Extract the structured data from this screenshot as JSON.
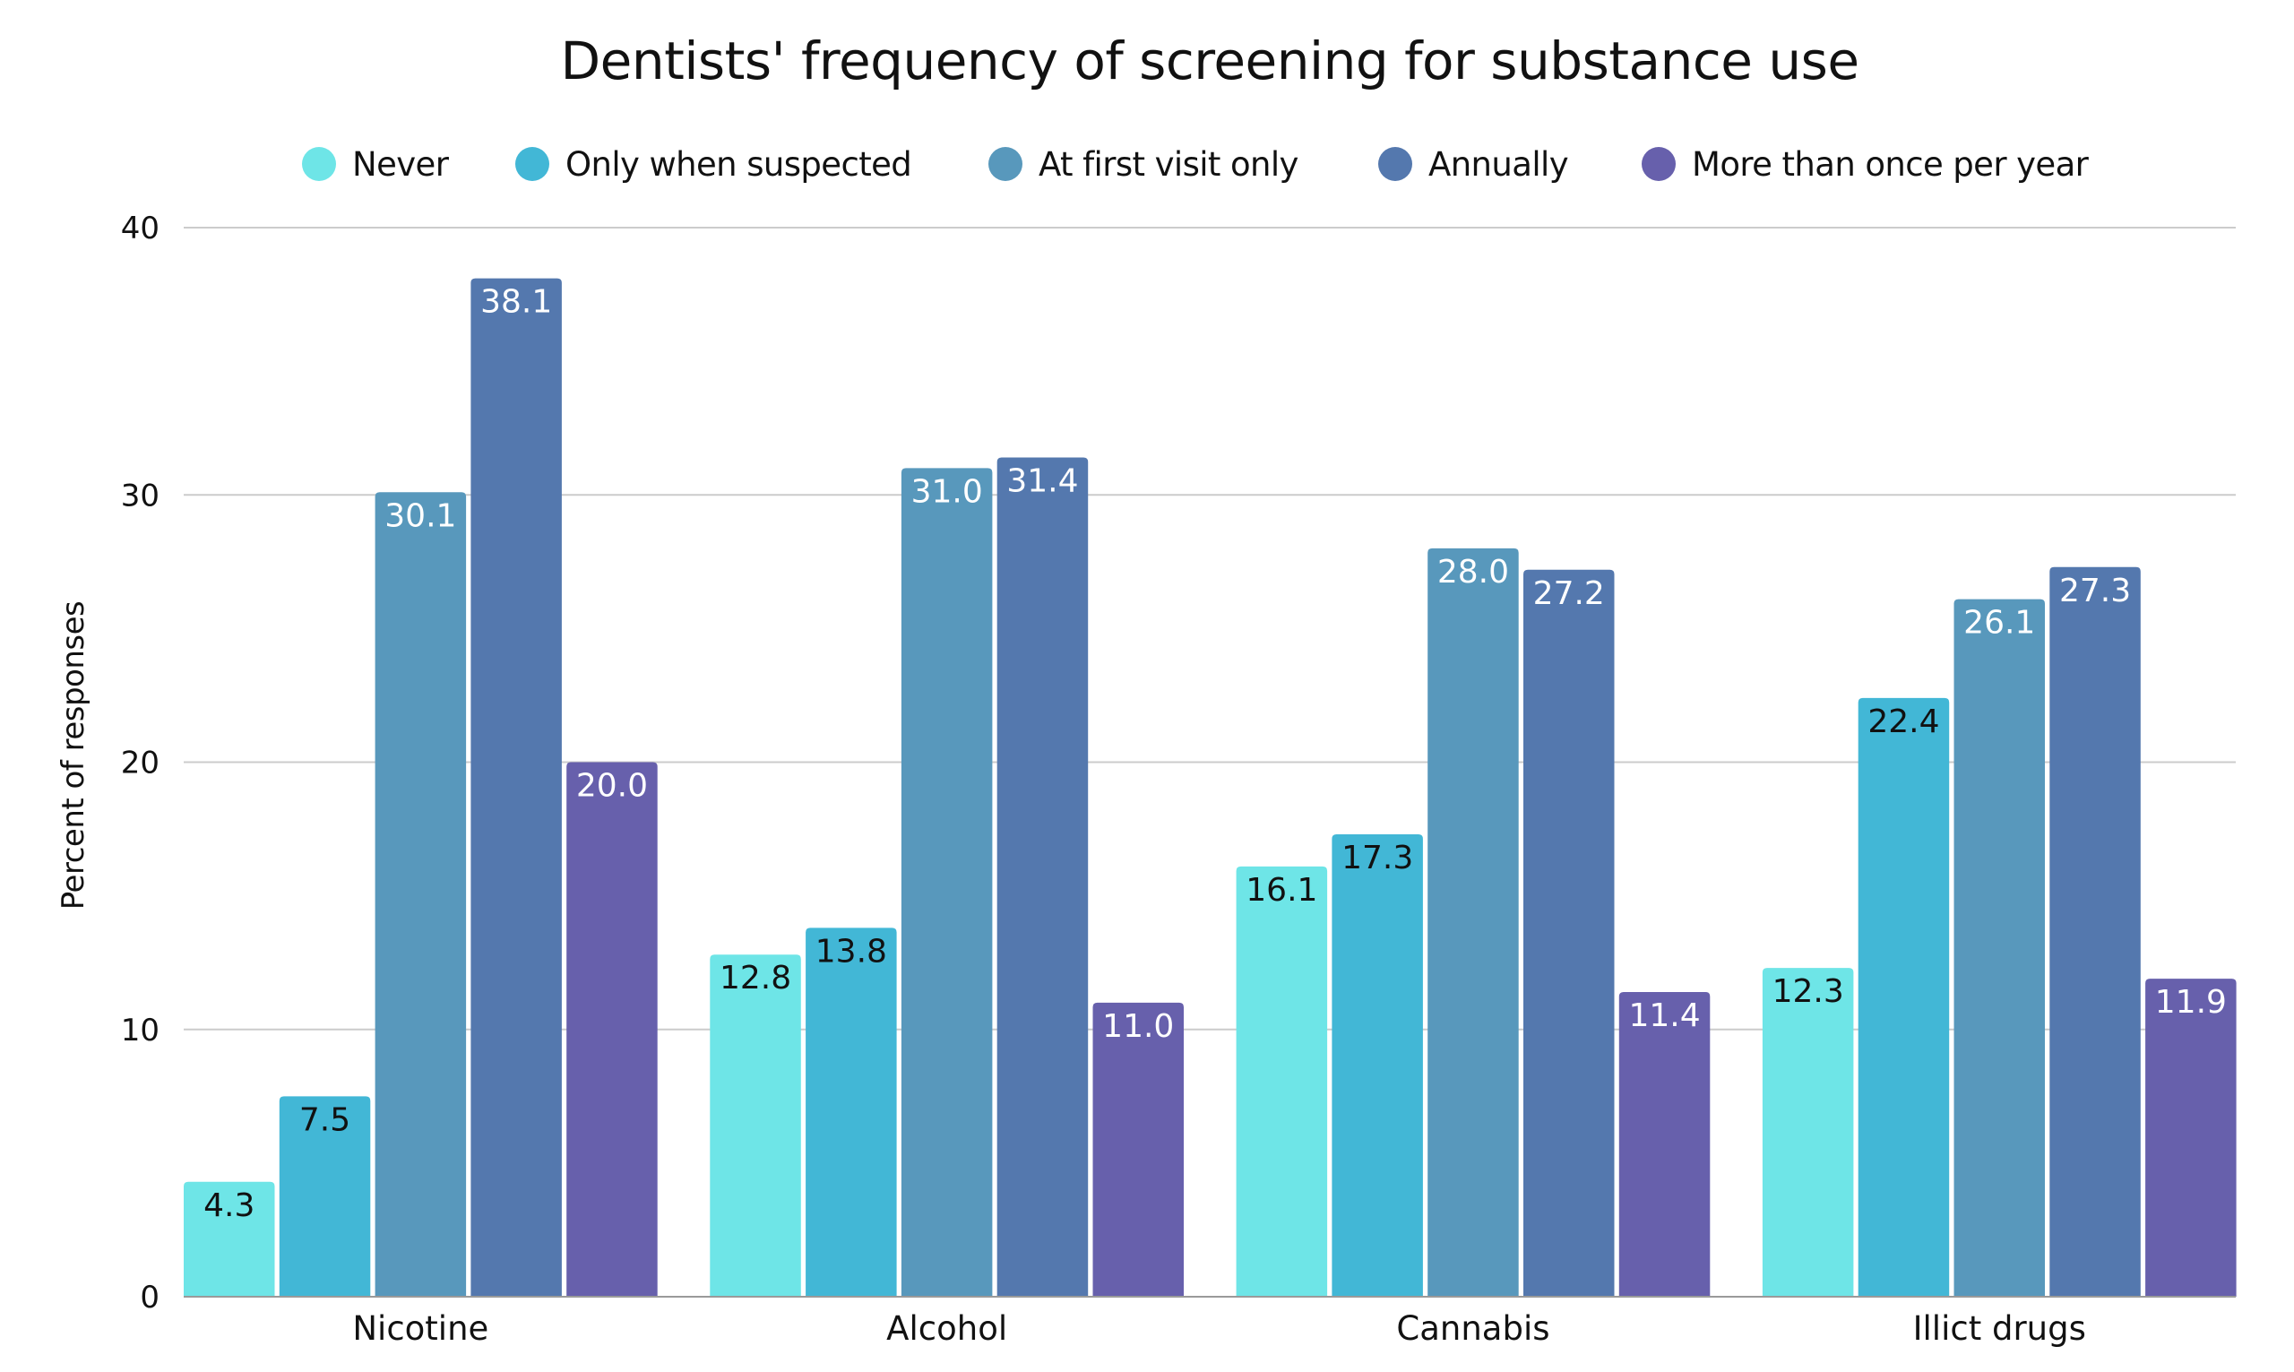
{
  "chart_data": {
    "type": "bar",
    "title": "Dentists' frequency of screening for substance use",
    "xlabel": "",
    "ylabel": "Percent of responses",
    "ylim": [
      0,
      40
    ],
    "yticks": [
      0,
      10,
      20,
      30,
      40
    ],
    "grid": true,
    "legend_position": "top-center",
    "categories": [
      "Nicotine",
      "Alcohol",
      "Cannabis",
      "Illict drugs"
    ],
    "series": [
      {
        "name": "Never",
        "color": "#6EE5E7",
        "label_color": "#111111",
        "values": [
          4.3,
          12.8,
          16.1,
          12.3
        ],
        "labels": [
          "4.3",
          "12.8",
          "16.1",
          "12.3"
        ]
      },
      {
        "name": "Only when suspected",
        "color": "#42B7D6",
        "label_color": "#111111",
        "values": [
          7.5,
          13.8,
          17.3,
          22.4
        ],
        "labels": [
          "7.5",
          "13.8",
          "17.3",
          "22.4"
        ]
      },
      {
        "name": "At first visit only",
        "color": "#5898BC",
        "label_color": "#ffffff",
        "values": [
          30.1,
          31.0,
          28.0,
          26.1
        ],
        "labels": [
          "30.1",
          "31.0",
          "28.0",
          "26.1"
        ]
      },
      {
        "name": "Annually",
        "color": "#5478AE",
        "label_color": "#ffffff",
        "values": [
          38.1,
          31.4,
          27.2,
          27.3
        ],
        "labels": [
          "38.1",
          "31.4",
          "27.2",
          "27.3"
        ]
      },
      {
        "name": "More than once per year",
        "color": "#6760AC",
        "label_color": "#ffffff",
        "values": [
          20.0,
          11.0,
          11.4,
          11.9
        ],
        "labels": [
          "20.0",
          "11.0",
          "11.4",
          "11.9"
        ]
      }
    ]
  }
}
